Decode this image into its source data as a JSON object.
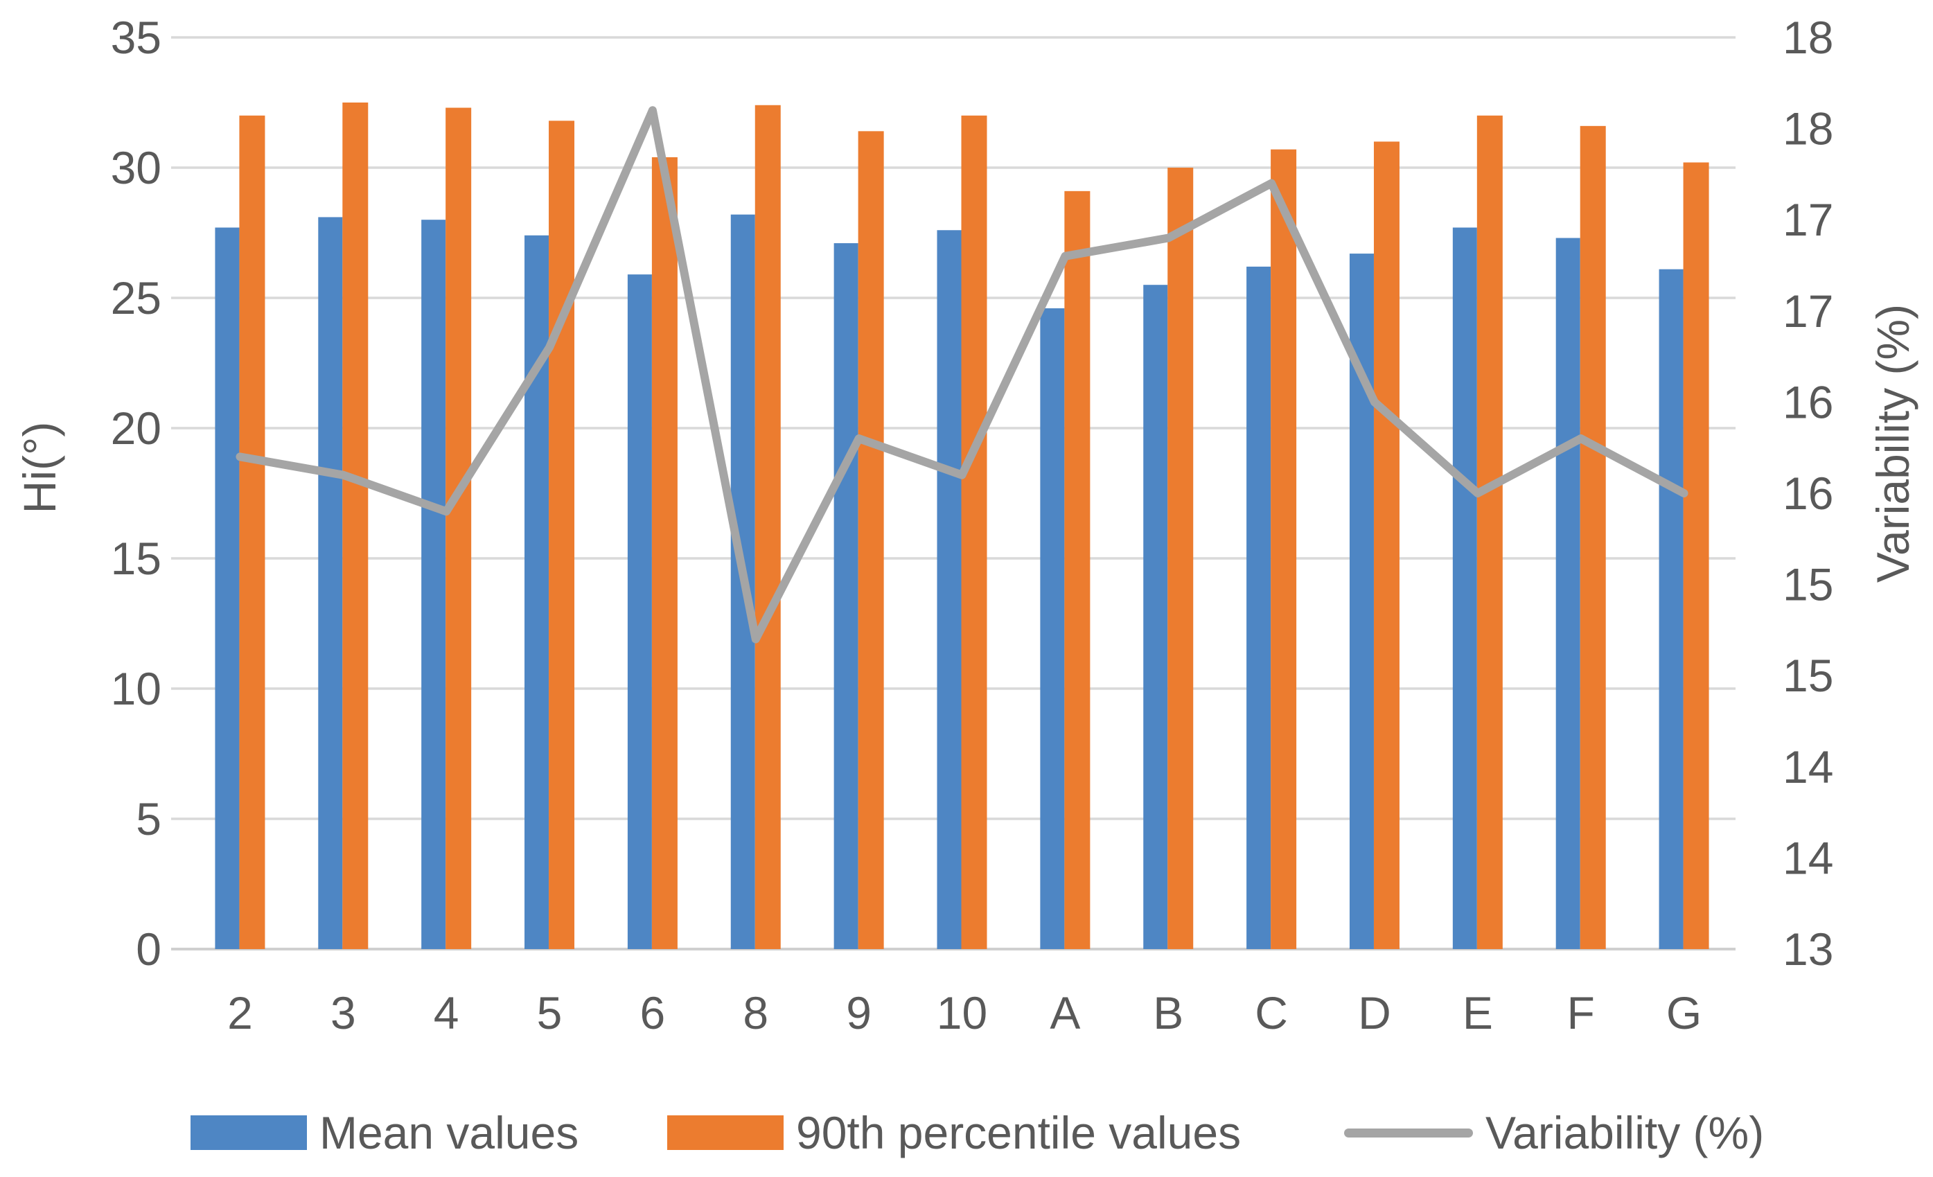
{
  "chart_data": {
    "type": "combo-bar-line",
    "title": "",
    "categories": [
      "2",
      "3",
      "4",
      "5",
      "6",
      "8",
      "9",
      "10",
      "A",
      "B",
      "C",
      "D",
      "E",
      "F",
      "G"
    ],
    "series": [
      {
        "name": "Mean values",
        "type": "bar",
        "axis": "left",
        "color": "#4E86C4",
        "values": [
          27.7,
          28.1,
          28.0,
          27.4,
          25.9,
          28.2,
          27.1,
          27.6,
          24.6,
          25.5,
          26.2,
          26.7,
          27.7,
          27.3,
          26.1
        ]
      },
      {
        "name": "90th percentile values",
        "type": "bar",
        "axis": "left",
        "color": "#EC7C2F",
        "values": [
          32.0,
          32.5,
          32.3,
          31.8,
          30.4,
          32.4,
          31.4,
          32.0,
          29.1,
          30.0,
          30.7,
          31.0,
          32.0,
          31.6,
          30.2
        ]
      },
      {
        "name": "Variability (%)",
        "type": "line",
        "axis": "right",
        "color": "#A5A5A5",
        "values": [
          15.7,
          15.6,
          15.4,
          16.3,
          17.6,
          14.7,
          15.8,
          15.6,
          16.8,
          16.9,
          17.2,
          16.0,
          15.5,
          15.8,
          15.5
        ]
      }
    ],
    "left_axis": {
      "title": "Hi(°)",
      "min": 0,
      "max": 35,
      "step": 5,
      "tick_labels": [
        "35",
        "30",
        "25",
        "20",
        "15",
        "10",
        "5",
        "0"
      ]
    },
    "right_axis": {
      "title": "Variability (%)",
      "min": 13,
      "max": 18,
      "step": 0.5,
      "tick_labels": [
        "18",
        "18",
        "17",
        "17",
        "16",
        "16",
        "15",
        "15",
        "14",
        "14",
        "13"
      ]
    },
    "legend": {
      "position": "bottom",
      "items": [
        "Mean values",
        "90th percentile values",
        "Variability (%)"
      ]
    },
    "grid": {
      "show": true,
      "color": "#D9D9D9"
    },
    "axis_line_color": "#CFCFCF",
    "text_color": "#595959",
    "background": "#FFFFFF"
  }
}
